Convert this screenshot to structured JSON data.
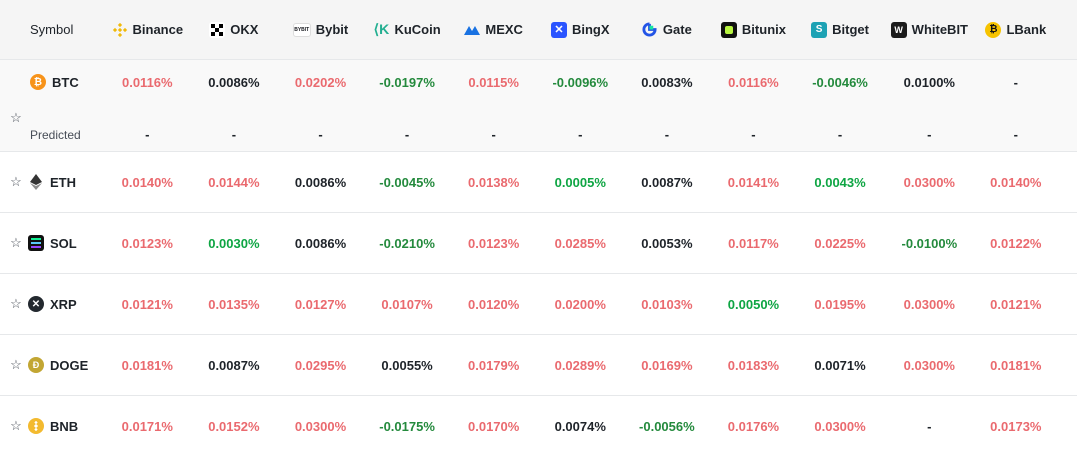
{
  "header": {
    "symbol_label": "Symbol",
    "exchanges": [
      {
        "name": "Binance",
        "icon": "binance-icon",
        "color": "#f0b90b"
      },
      {
        "name": "OKX",
        "icon": "okx-icon",
        "color": "#000000"
      },
      {
        "name": "Bybit",
        "icon": "bybit-icon",
        "color": "#17181e"
      },
      {
        "name": "KuCoin",
        "icon": "kucoin-icon",
        "color": "#23af91"
      },
      {
        "name": "MEXC",
        "icon": "mexc-icon",
        "color": "#1972e2"
      },
      {
        "name": "BingX",
        "icon": "bingx-icon",
        "color": "#2a54ff"
      },
      {
        "name": "Gate",
        "icon": "gate-icon",
        "color": "#2354e6"
      },
      {
        "name": "Bitunix",
        "icon": "bitunix-icon",
        "color": "#b9f641"
      },
      {
        "name": "Bitget",
        "icon": "bitget-icon",
        "color": "#1da2b4"
      },
      {
        "name": "WhiteBIT",
        "icon": "whitebit-icon",
        "color": "#1b1b1b"
      },
      {
        "name": "LBank",
        "icon": "lbank-icon",
        "color": "#f6c300"
      }
    ]
  },
  "btc": {
    "symbol": "BTC",
    "icon": "btc-icon",
    "predicted_label": "Predicted",
    "rates": [
      "0.0116%",
      "0.0086%",
      "0.0202%",
      "-0.0197%",
      "0.0115%",
      "-0.0096%",
      "0.0083%",
      "0.0116%",
      "-0.0046%",
      "0.0100%",
      "-"
    ],
    "predicted": [
      "-",
      "-",
      "-",
      "-",
      "-",
      "-",
      "-",
      "-",
      "-",
      "-",
      "-"
    ]
  },
  "rows": [
    {
      "symbol": "ETH",
      "icon": "eth-icon",
      "rates": [
        "0.0140%",
        "0.0144%",
        "0.0086%",
        "-0.0045%",
        "0.0138%",
        "0.0005%",
        "0.0087%",
        "0.0141%",
        "0.0043%",
        "0.0300%",
        "0.0140%"
      ]
    },
    {
      "symbol": "SOL",
      "icon": "sol-icon",
      "rates": [
        "0.0123%",
        "0.0030%",
        "0.0086%",
        "-0.0210%",
        "0.0123%",
        "0.0285%",
        "0.0053%",
        "0.0117%",
        "0.0225%",
        "-0.0100%",
        "0.0122%"
      ]
    },
    {
      "symbol": "XRP",
      "icon": "xrp-icon",
      "rates": [
        "0.0121%",
        "0.0135%",
        "0.0127%",
        "0.0107%",
        "0.0120%",
        "0.0200%",
        "0.0103%",
        "0.0050%",
        "0.0195%",
        "0.0300%",
        "0.0121%"
      ]
    },
    {
      "symbol": "DOGE",
      "icon": "doge-icon",
      "rates": [
        "0.0181%",
        "0.0087%",
        "0.0295%",
        "0.0055%",
        "0.0179%",
        "0.0289%",
        "0.0169%",
        "0.0183%",
        "0.0071%",
        "0.0300%",
        "0.0181%"
      ]
    },
    {
      "symbol": "BNB",
      "icon": "bnb-icon",
      "rates": [
        "0.0171%",
        "0.0152%",
        "0.0300%",
        "-0.0175%",
        "0.0170%",
        "0.0074%",
        "-0.0056%",
        "0.0176%",
        "0.0300%",
        "-",
        "0.0173%"
      ]
    }
  ],
  "colors": {
    "positive_high": "#ea6a6f",
    "negative": "#248a3d",
    "positive_green": "#0ea543",
    "neutral": "#1e2329",
    "header_bg": "#f5f5f5"
  }
}
